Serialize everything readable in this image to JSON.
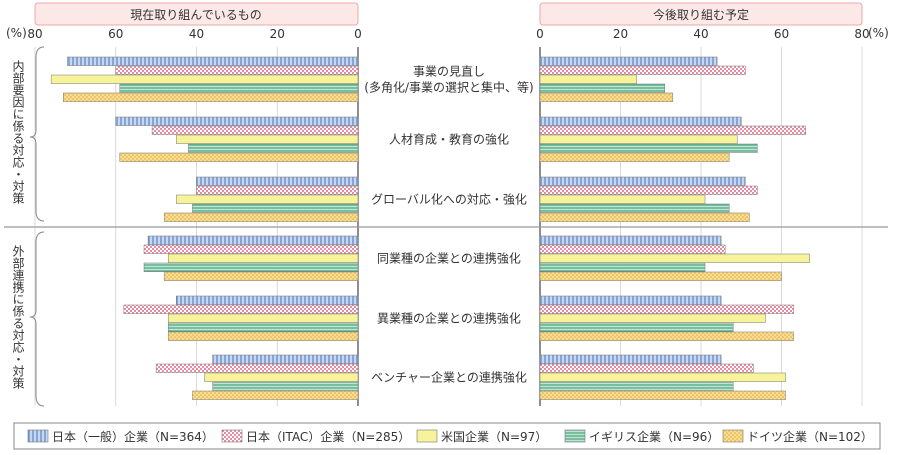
{
  "chart_data": {
    "type": "bar",
    "panels": [
      {
        "title": "現在取り組んでいるもの",
        "axis_direction": "reversed",
        "xlim": [
          0,
          80
        ],
        "ticks": [
          0,
          20,
          40,
          60,
          80
        ],
        "unit": "(%)"
      },
      {
        "title": "今後取り組む予定",
        "axis_direction": "normal",
        "xlim": [
          0,
          80
        ],
        "ticks": [
          0,
          20,
          40,
          60,
          80
        ],
        "unit": "(%)"
      }
    ],
    "groups": [
      {
        "label": "内部要因に係る対応・対策",
        "categories": [
          0,
          1,
          2
        ]
      },
      {
        "label": "外部連携に係る対応・対策",
        "categories": [
          3,
          4,
          5
        ]
      }
    ],
    "categories": [
      {
        "lines": [
          "事業の見直し",
          "(多角化/事業の選択と集中、等)"
        ]
      },
      {
        "lines": [
          "人材育成・教育の強化"
        ]
      },
      {
        "lines": [
          "グローバル化への対応・強化"
        ]
      },
      {
        "lines": [
          "同業種の企業との連携強化"
        ]
      },
      {
        "lines": [
          "異業種の企業との連携強化"
        ]
      },
      {
        "lines": [
          "ベンチャー企業との連携強化"
        ]
      }
    ],
    "series": [
      {
        "name": "日本（一般）企業（N=364）",
        "color": "#9db8e0",
        "pattern": "vertical-lines",
        "current": [
          72,
          60,
          40,
          52,
          45,
          36
        ],
        "planned": [
          44,
          50,
          51,
          45,
          45,
          45
        ]
      },
      {
        "name": "日本（ITAC）企業（N=285）",
        "color": "#f2b8c4",
        "pattern": "checker",
        "current": [
          60,
          51,
          40,
          53,
          58,
          50
        ],
        "planned": [
          51,
          66,
          54,
          46,
          63,
          53
        ]
      },
      {
        "name": "米国企業（N=97）",
        "color": "#f5f08a",
        "pattern": "solid",
        "current": [
          76,
          45,
          45,
          47,
          47,
          38
        ],
        "planned": [
          24,
          49,
          41,
          67,
          56,
          61
        ]
      },
      {
        "name": "イギリス企業（N=96）",
        "color": "#8fcfb4",
        "pattern": "horizontal-lines",
        "current": [
          59,
          42,
          41,
          53,
          47,
          36
        ],
        "planned": [
          31,
          54,
          47,
          41,
          48,
          48
        ]
      },
      {
        "name": "ドイツ企業（N=102）",
        "color": "#f2c96a",
        "pattern": "dots",
        "current": [
          73,
          59,
          48,
          48,
          47,
          41
        ],
        "planned": [
          33,
          47,
          52,
          60,
          63,
          61
        ]
      }
    ]
  }
}
